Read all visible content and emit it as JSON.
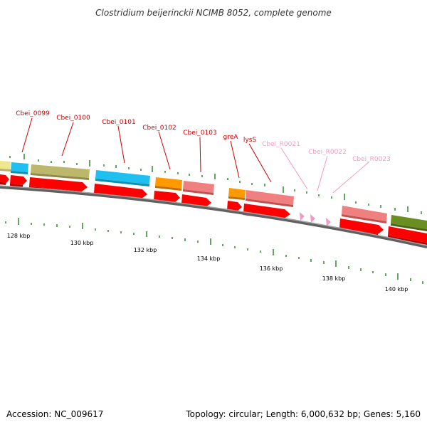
{
  "title": "Clostridium beijerinckii NCIMB 8052, complete genome",
  "footer": {
    "accession": "Accession: NC_009617",
    "summary": "Topology: circular; Length: 6,000,632 bp; Genes: 5,160"
  },
  "colors": {
    "backbone": "#808080",
    "cds_arrow": "#ff0000",
    "rna_arrow": "#f09ac4",
    "gene_label": "#cc0000",
    "rna_label": "#f09ac4",
    "tick": "#2a8a2a"
  },
  "tick_labels": [
    "128 kbp",
    "130 kbp",
    "132 kbp",
    "134 kbp",
    "136 kbp",
    "138 kbp",
    "140 kbp"
  ],
  "gene_labels": [
    "Cbei_0099",
    "Cbei_0100",
    "Cbei_0101",
    "Cbei_0102",
    "Cbei_0103",
    "greA",
    "lysS"
  ],
  "rna_labels": [
    "Cbei_R0021",
    "Cbei_R0022",
    "Cbei_R0023"
  ]
}
